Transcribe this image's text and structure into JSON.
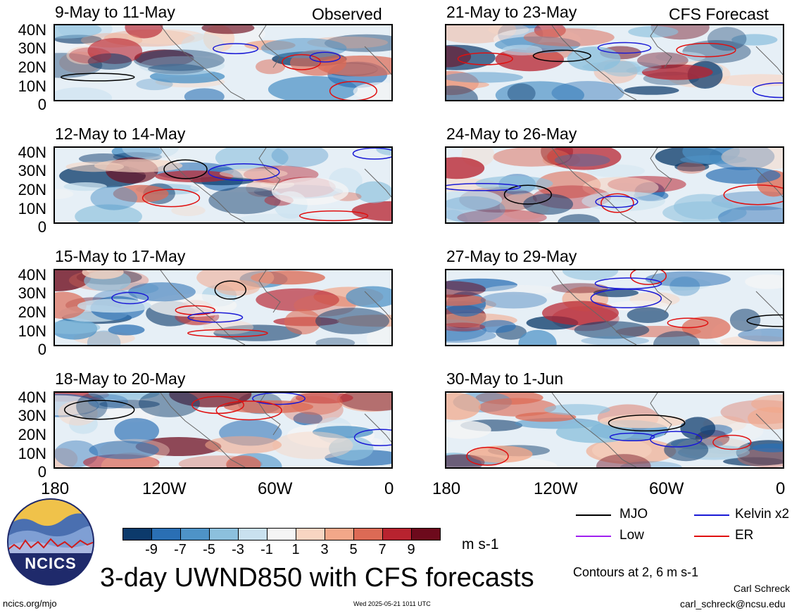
{
  "panels": {
    "left": [
      {
        "title": "9-May to 11-May"
      },
      {
        "title": "12-May to 14-May"
      },
      {
        "title": "15-May to 17-May"
      },
      {
        "title": "18-May to 20-May"
      }
    ],
    "right": [
      {
        "title": "21-May to 23-May"
      },
      {
        "title": "24-May to 26-May"
      },
      {
        "title": "27-May to 29-May"
      },
      {
        "title": "30-May to 1-Jun"
      }
    ]
  },
  "tags": {
    "observed": "Observed",
    "forecast": "CFS Forecast"
  },
  "lat_labels": [
    "40N",
    "30N",
    "20N",
    "10N",
    "0"
  ],
  "lon_labels": [
    "180",
    "120W",
    "60W",
    "0"
  ],
  "colorbar": {
    "colors": [
      "#0c3a6b",
      "#2a6fb4",
      "#4e93c7",
      "#8cc0dd",
      "#c9e1ef",
      "#f5f5f5",
      "#f8d5c2",
      "#f2a789",
      "#dc6a55",
      "#b8232f",
      "#6d0a1c"
    ],
    "labels": [
      "-9",
      "-7",
      "-5",
      "-3",
      "-1",
      "1",
      "3",
      "5",
      "7",
      "9"
    ],
    "units": "m s-1"
  },
  "legend": {
    "mjo": {
      "label": "MJO",
      "color": "#000000"
    },
    "kelvin": {
      "label": "Kelvin x2",
      "color": "#1a1ad6"
    },
    "low": {
      "label": "Low",
      "color": "#a020f0"
    },
    "er": {
      "label": "ER",
      "color": "#e01010"
    },
    "contours_note": "Contours at 2, 6 m s-1"
  },
  "main_title": "3-day UWND850 with CFS forecasts",
  "logo_text": "NCICS",
  "footer": {
    "url": "ncics.org/mjo",
    "timestamp": "Wed 2025-05-21 1011 UTC",
    "author": "Carl Schreck",
    "email": "carl_schreck@ncsu.edu"
  }
}
